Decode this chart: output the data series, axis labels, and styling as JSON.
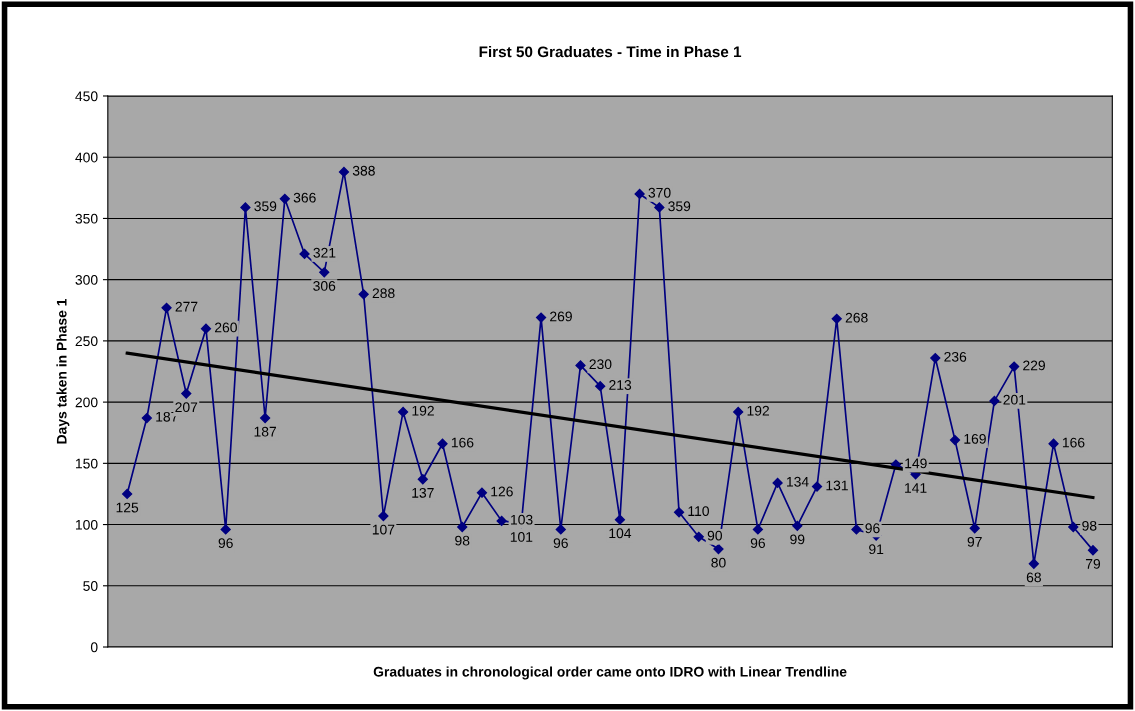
{
  "chart_data": {
    "type": "line",
    "title": "First 50 Graduates - Time in Phase 1",
    "xlabel": "Graduates in chronological order came onto IDRO with Linear Trendline",
    "ylabel": "Days taken in Phase 1",
    "categories": [
      null,
      null,
      null,
      null,
      null,
      null,
      null,
      null,
      null,
      null,
      null,
      null,
      null,
      null,
      null,
      null,
      null,
      null,
      null,
      null,
      null,
      null,
      null,
      null,
      null,
      null,
      null,
      null,
      null,
      null,
      null,
      null,
      null,
      null,
      null,
      null,
      null,
      null,
      null,
      null,
      null,
      null,
      null,
      null,
      null,
      null,
      null,
      null,
      null,
      null
    ],
    "series": [
      {
        "color": "#000080",
        "marker": "diamond",
        "data_labels": true,
        "values": [
          125,
          187,
          277,
          207,
          260,
          96,
          359,
          187,
          366,
          321,
          306,
          388,
          288,
          107,
          192,
          137,
          166,
          98,
          126,
          103,
          101,
          269,
          96,
          230,
          213,
          104,
          370,
          359,
          110,
          90,
          80,
          192,
          96,
          134,
          99,
          131,
          268,
          96,
          91,
          149,
          141,
          236,
          169,
          97,
          201,
          229,
          68,
          166,
          98,
          79
        ]
      },
      {
        "type": "line",
        "color": "#000000",
        "values": [
          240,
          null,
          null,
          null,
          null,
          null,
          null,
          null,
          null,
          null,
          null,
          null,
          null,
          null,
          null,
          null,
          null,
          null,
          null,
          null,
          null,
          null,
          null,
          null,
          null,
          null,
          null,
          null,
          null,
          null,
          null,
          null,
          null,
          null,
          null,
          null,
          null,
          null,
          null,
          null,
          null,
          null,
          null,
          null,
          null,
          null,
          null,
          null,
          null,
          122
        ]
      }
    ],
    "ylim": [
      0,
      450
    ],
    "yticks": [
      0,
      50,
      100,
      150,
      200,
      250,
      300,
      350,
      400,
      450
    ],
    "grid": "y",
    "tick_labels": "y"
  }
}
